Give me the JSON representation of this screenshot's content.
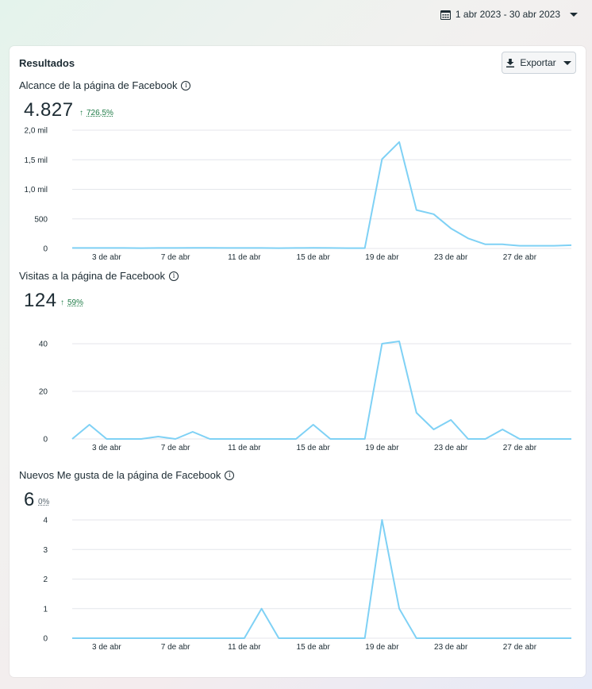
{
  "date_range": {
    "label": "1 abr 2023 - 30 abr 2023"
  },
  "results": {
    "title": "Resultados",
    "export_label": "Exportar"
  },
  "metrics": [
    {
      "title": "Alcance de la página de Facebook",
      "value": "4.827",
      "delta": "726,5%",
      "direction": "up"
    },
    {
      "title": "Visitas a la página de Facebook",
      "value": "124",
      "delta": "59%",
      "direction": "up"
    },
    {
      "title": "Nuevos Me gusta de la página de Facebook",
      "value": "6",
      "delta": "0%",
      "direction": "none"
    }
  ],
  "colors": {
    "line": "#7fd1f5",
    "grid": "#e4e6eb",
    "up": "#1d7a45"
  },
  "chart_data": [
    {
      "type": "line",
      "x_tick_labels": [
        "3 de abr",
        "7 de abr",
        "11 de abr",
        "15 de abr",
        "19 de abr",
        "23 de abr",
        "27 de abr"
      ],
      "x_tick_days": [
        3,
        7,
        11,
        15,
        19,
        23,
        27
      ],
      "y_tick_labels": [
        "0",
        "500",
        "1,0 mil",
        "1,5 mil",
        "2,0 mil"
      ],
      "ylim": [
        0,
        2000
      ],
      "x": [
        1,
        2,
        3,
        4,
        5,
        6,
        7,
        8,
        9,
        10,
        11,
        12,
        13,
        14,
        15,
        16,
        17,
        18,
        19,
        20,
        21,
        22,
        23,
        24,
        25,
        26,
        27,
        28,
        29,
        30
      ],
      "values": [
        8,
        8,
        8,
        8,
        5,
        8,
        8,
        10,
        10,
        8,
        8,
        8,
        6,
        8,
        10,
        8,
        5,
        5,
        1510,
        1800,
        650,
        580,
        340,
        170,
        70,
        70,
        45,
        45,
        45,
        55
      ],
      "grid": true
    },
    {
      "type": "line",
      "x_tick_labels": [
        "3 de abr",
        "7 de abr",
        "11 de abr",
        "15 de abr",
        "19 de abr",
        "23 de abr",
        "27 de abr"
      ],
      "x_tick_days": [
        3,
        7,
        11,
        15,
        19,
        23,
        27
      ],
      "y_tick_labels": [
        "0",
        "20",
        "40"
      ],
      "ylim": [
        0,
        40
      ],
      "x": [
        1,
        2,
        3,
        4,
        5,
        6,
        7,
        8,
        9,
        10,
        11,
        12,
        13,
        14,
        15,
        16,
        17,
        18,
        19,
        20,
        21,
        22,
        23,
        24,
        25,
        26,
        27,
        28,
        29,
        30
      ],
      "values": [
        0,
        6,
        0,
        0,
        0,
        1,
        0,
        3,
        0,
        0,
        0,
        0,
        0,
        0,
        6,
        0,
        0,
        0,
        40,
        41,
        11,
        4,
        8,
        0,
        0,
        4,
        0,
        0,
        0,
        0
      ],
      "grid": true
    },
    {
      "type": "line",
      "x_tick_labels": [
        "3 de abr",
        "7 de abr",
        "11 de abr",
        "15 de abr",
        "19 de abr",
        "23 de abr",
        "27 de abr"
      ],
      "x_tick_days": [
        3,
        7,
        11,
        15,
        19,
        23,
        27
      ],
      "y_tick_labels": [
        "0",
        "1",
        "2",
        "3",
        "4"
      ],
      "ylim": [
        0,
        4
      ],
      "x": [
        1,
        2,
        3,
        4,
        5,
        6,
        7,
        8,
        9,
        10,
        11,
        12,
        13,
        14,
        15,
        16,
        17,
        18,
        19,
        20,
        21,
        22,
        23,
        24,
        25,
        26,
        27,
        28,
        29,
        30
      ],
      "values": [
        0,
        0,
        0,
        0,
        0,
        0,
        0,
        0,
        0,
        0,
        0,
        1,
        0,
        0,
        0,
        0,
        0,
        0,
        4,
        1,
        0,
        0,
        0,
        0,
        0,
        0,
        0,
        0,
        0,
        0
      ],
      "grid": true
    }
  ]
}
